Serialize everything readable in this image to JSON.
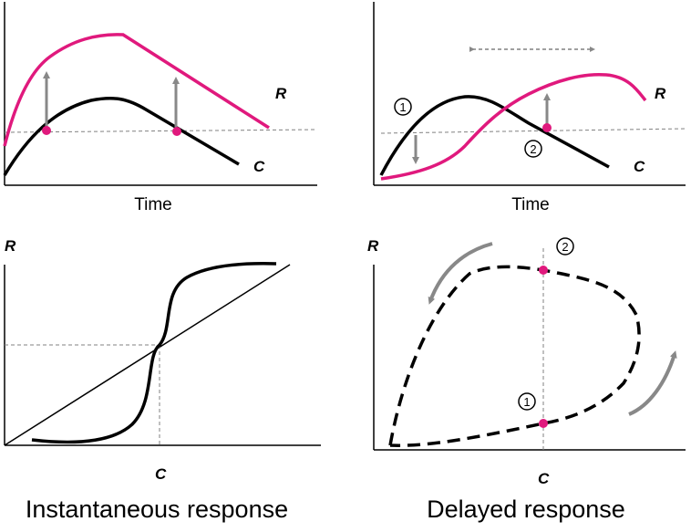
{
  "labels": {
    "time": "Time",
    "r": "R",
    "c": "C",
    "marker_1": "1",
    "marker_2": "2"
  },
  "captions": {
    "left": "Instantaneous response",
    "right": "Delayed response"
  },
  "colors": {
    "response_curve": "#e0197d",
    "stimulus_curve": "#000000",
    "arrow": "#888888",
    "marker": "#e0197d",
    "guide": "#808080"
  }
}
